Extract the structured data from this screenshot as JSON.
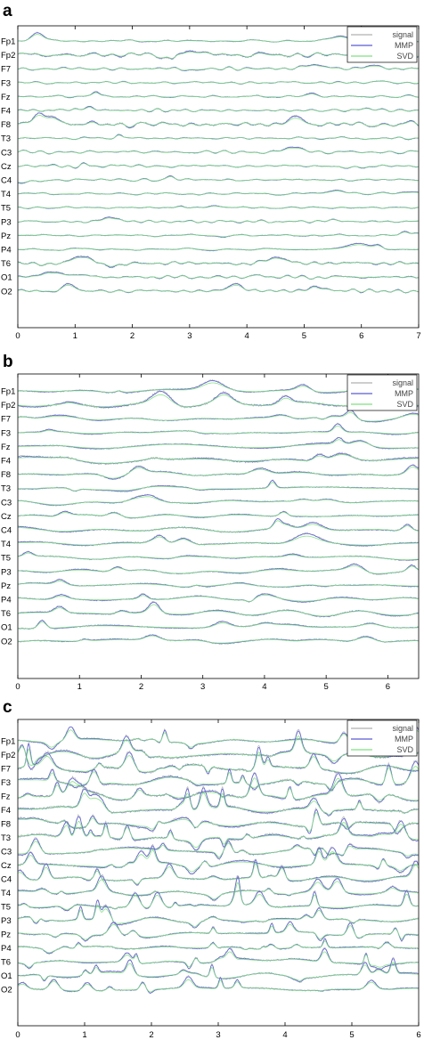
{
  "chart_data": [
    {
      "type": "line",
      "panel_label": "a",
      "channels": [
        "Fp1",
        "Fp2",
        "F7",
        "F3",
        "Fz",
        "F4",
        "F8",
        "T3",
        "C3",
        "Cz",
        "C4",
        "T4",
        "T5",
        "P3",
        "Pz",
        "P4",
        "T6",
        "O1",
        "O2"
      ],
      "series": [
        {
          "name": "signal",
          "color": "#b0b0b0"
        },
        {
          "name": "MMP",
          "color": "#5b5bd6"
        },
        {
          "name": "SVD",
          "color": "#7fe07f"
        }
      ],
      "xlim": [
        0,
        7
      ],
      "xticks": [
        "0",
        "1",
        "2",
        "3",
        "4",
        "5",
        "6",
        "7"
      ],
      "legend_position": "top-right",
      "seed": 11,
      "activity": [
        0.15,
        1.0,
        0.15,
        0.15,
        0.2,
        0.2,
        0.9,
        0.15,
        0.2,
        0.2,
        0.15,
        0.15,
        0.15,
        0.2,
        0.2,
        0.25,
        0.7,
        0.45,
        0.4
      ],
      "style": "fast"
    },
    {
      "type": "line",
      "panel_label": "b",
      "channels": [
        "Fp1",
        "Fp2",
        "F7",
        "F3",
        "Fz",
        "F4",
        "F8",
        "T3",
        "C3",
        "Cz",
        "C4",
        "T4",
        "T5",
        "P3",
        "Pz",
        "P4",
        "T6",
        "O1",
        "O2"
      ],
      "series": [
        {
          "name": "signal",
          "color": "#b0b0b0"
        },
        {
          "name": "MMP",
          "color": "#5b5bd6"
        },
        {
          "name": "SVD",
          "color": "#7fe07f"
        }
      ],
      "xlim": [
        0,
        6.5
      ],
      "xticks": [
        "0",
        "1",
        "2",
        "3",
        "4",
        "5",
        "6"
      ],
      "legend_position": "top-right",
      "seed": 23,
      "activity": [
        0.5,
        1.0,
        0.45,
        0.4,
        0.5,
        0.9,
        0.6,
        0.4,
        0.4,
        0.4,
        0.7,
        0.6,
        0.4,
        0.45,
        0.45,
        0.5,
        0.6,
        0.5,
        0.5
      ],
      "style": "slow"
    },
    {
      "type": "line",
      "panel_label": "c",
      "channels": [
        "Fp1",
        "Fp2",
        "F7",
        "F3",
        "Fz",
        "F4",
        "F8",
        "T3",
        "C3",
        "Cz",
        "C4",
        "T4",
        "T5",
        "P3",
        "Pz",
        "P4",
        "T6",
        "O1",
        "O2"
      ],
      "series": [
        {
          "name": "signal",
          "color": "#b0b0b0"
        },
        {
          "name": "MMP",
          "color": "#5b5bd6"
        },
        {
          "name": "SVD",
          "color": "#7fe07f"
        }
      ],
      "xlim": [
        0,
        6
      ],
      "xticks": [
        "0",
        "1",
        "2",
        "3",
        "4",
        "5",
        "6"
      ],
      "legend_position": "top-right",
      "seed": 37,
      "activity": [
        0.6,
        1.0,
        1.0,
        1.0,
        1.0,
        1.0,
        1.0,
        1.0,
        0.7,
        0.7,
        0.7,
        0.6,
        0.6,
        0.6,
        0.6,
        0.6,
        0.55,
        0.55,
        0.55
      ],
      "style": "spiky"
    }
  ]
}
